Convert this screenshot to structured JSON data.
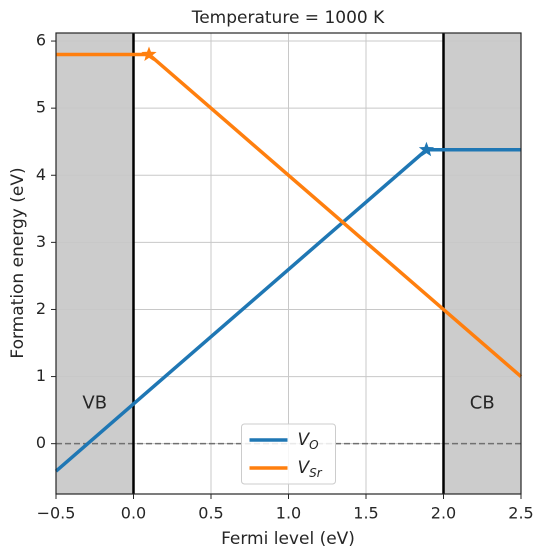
{
  "chart_data": {
    "type": "line",
    "title": "Temperature = 1000 K",
    "x_label": "Fermi level (eV)",
    "y_label": "Formation energy (eV)",
    "xlim": [
      -0.5,
      2.5
    ],
    "ylim": [
      -0.75,
      6.12
    ],
    "xticks": [
      {
        "value": -0.5,
        "label": "−0.5"
      },
      {
        "value": 0,
        "label": "0.0"
      },
      {
        "value": 0.5,
        "label": "0.5"
      },
      {
        "value": 1,
        "label": "1.0"
      },
      {
        "value": 1.5,
        "label": "1.5"
      },
      {
        "value": 2,
        "label": "2.0"
      },
      {
        "value": 2.5,
        "label": "2.5"
      }
    ],
    "yticks": [
      0,
      1,
      2,
      3,
      4,
      5,
      6
    ],
    "grid": true,
    "shaded_regions": [
      {
        "label": "VB",
        "range": [
          -0.5,
          0
        ]
      },
      {
        "label": "CB",
        "range": [
          2.0,
          2.5
        ]
      }
    ],
    "shade_color": "#cccccc",
    "vlines": [
      0,
      2.0
    ],
    "hline": 0,
    "legend": "lower center",
    "series": [
      {
        "name": "V",
        "name_sub": "O",
        "color": "#1f77b4",
        "x": [
          -0.5,
          1.89,
          2.5
        ],
        "values": [
          -0.41,
          4.38,
          4.38
        ],
        "marker": "star",
        "marker_index": 1
      },
      {
        "name": "V",
        "name_sub": "Sr",
        "color": "#ff7f0e",
        "x": [
          -0.5,
          0.1,
          2.5
        ],
        "values": [
          5.8,
          5.8,
          1.0
        ],
        "marker": "star",
        "marker_index": 1
      }
    ]
  }
}
